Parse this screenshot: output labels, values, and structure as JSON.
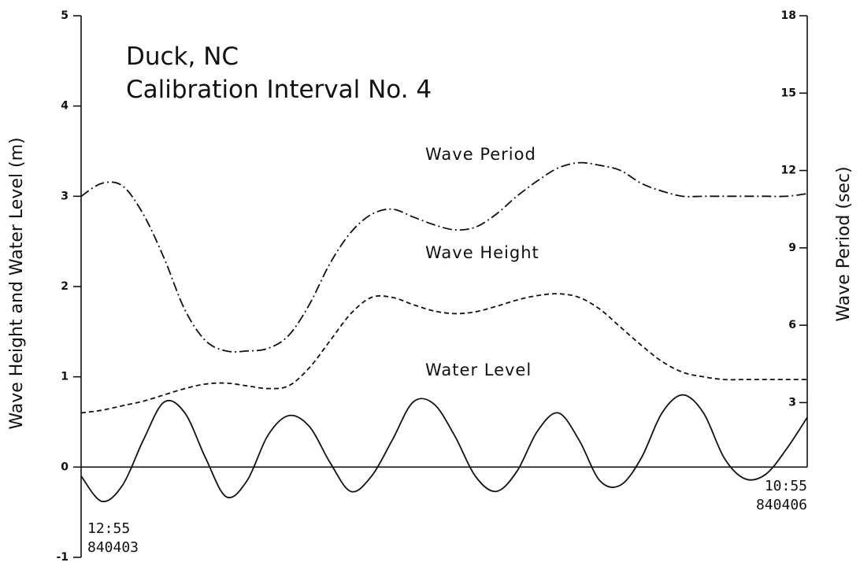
{
  "chart_data": {
    "type": "line",
    "title": "Duck, NC",
    "subtitle": "Calibration Interval No. 4",
    "y_label": "Wave Height and Water Level  (m)",
    "y2_label": "Wave Period  (sec)",
    "x": [
      0,
      2,
      4,
      6,
      8,
      10,
      12,
      14,
      16,
      18,
      20,
      22,
      24,
      26,
      28,
      30,
      32,
      34,
      36,
      38,
      40,
      42,
      44,
      46,
      48,
      50,
      52,
      54,
      56,
      58,
      60,
      62,
      64,
      66,
      68,
      70
    ],
    "xlim": [
      0,
      70
    ],
    "xticks": [
      {
        "value": 0,
        "label": "12:55 840403"
      },
      {
        "value": 70,
        "label": "10:55 840406"
      }
    ],
    "ylim": [
      -1,
      5
    ],
    "yticks": [
      -1,
      0,
      1,
      2,
      3,
      4,
      5
    ],
    "y2lim": [
      -3,
      18
    ],
    "y2ticks": [
      3,
      6,
      9,
      12,
      15,
      18
    ],
    "zero_line": true,
    "series": [
      {
        "name": "Wave Period",
        "axis": "y2",
        "color": "#111111",
        "style": "dashdot",
        "values": [
          11.0,
          11.5,
          11.4,
          10.3,
          8.6,
          6.6,
          5.4,
          5.0,
          5.0,
          5.1,
          5.6,
          6.8,
          8.4,
          9.6,
          10.3,
          10.5,
          10.2,
          9.9,
          9.7,
          9.8,
          10.3,
          11.0,
          11.6,
          12.1,
          12.3,
          12.2,
          12.0,
          11.5,
          11.2,
          11.0,
          11.0,
          11.0,
          11.0,
          11.0,
          11.0,
          11.1
        ]
      },
      {
        "name": "Wave Height",
        "color": "#111111",
        "style": "dashed",
        "values": [
          0.6,
          0.63,
          0.68,
          0.73,
          0.8,
          0.87,
          0.92,
          0.93,
          0.9,
          0.87,
          0.9,
          1.1,
          1.4,
          1.7,
          1.88,
          1.88,
          1.8,
          1.73,
          1.7,
          1.72,
          1.78,
          1.85,
          1.9,
          1.92,
          1.88,
          1.75,
          1.55,
          1.35,
          1.17,
          1.05,
          1.0,
          0.97,
          0.97,
          0.97,
          0.97,
          0.97
        ]
      },
      {
        "name": "Water Level",
        "color": "#111111",
        "style": "solid",
        "values": [
          -0.1,
          -0.38,
          -0.2,
          0.3,
          0.72,
          0.6,
          0.1,
          -0.33,
          -0.15,
          0.35,
          0.57,
          0.45,
          0.05,
          -0.27,
          -0.1,
          0.3,
          0.72,
          0.7,
          0.35,
          -0.1,
          -0.27,
          -0.05,
          0.4,
          0.6,
          0.3,
          -0.15,
          -0.2,
          0.1,
          0.6,
          0.8,
          0.6,
          0.1,
          -0.13,
          -0.08,
          0.2,
          0.55
        ]
      }
    ]
  }
}
